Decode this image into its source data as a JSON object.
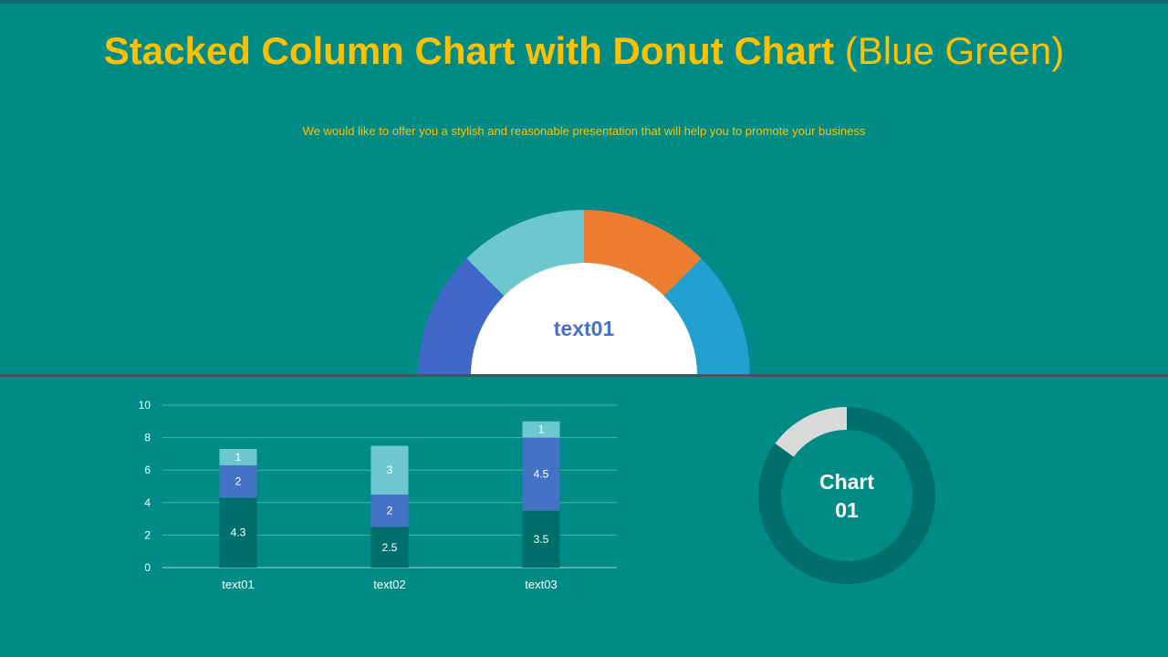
{
  "title": {
    "bold": "Stacked Column Chart with Donut Chart",
    "light": "(Blue Green)"
  },
  "subtitle": "We would like to offer you a stylish and reasonable presentation that will help you to promote your business",
  "colors": {
    "background": "#008b87",
    "title": "#ffc000",
    "dark_teal": "#006f6c",
    "royal_blue": "#4472c4",
    "light_teal": "#6cc8ce",
    "orange": "#ed7d31",
    "sky_blue": "#22a0d0",
    "gray": "#d9d9d9"
  },
  "chart_data": [
    {
      "type": "pie",
      "variant": "half-donut",
      "center_label": "text01",
      "slices": [
        {
          "value": 1,
          "color": "#4167c8"
        },
        {
          "value": 1,
          "color": "#6cc8ce"
        },
        {
          "value": 1,
          "color": "#ed7d31"
        },
        {
          "value": 1,
          "color": "#22a0d0"
        }
      ]
    },
    {
      "type": "bar",
      "stacked": true,
      "categories": [
        "text01",
        "text02",
        "text03"
      ],
      "series": [
        {
          "values": [
            4.3,
            2.5,
            3.5
          ],
          "color": "#006f6c"
        },
        {
          "values": [
            2,
            2,
            4.5
          ],
          "color": "#4472c4"
        },
        {
          "values": [
            1,
            3,
            1
          ],
          "color": "#6cc8ce"
        }
      ],
      "ylim": [
        0,
        10
      ],
      "yticks": [
        0,
        2,
        4,
        6,
        8,
        10
      ],
      "grid": true
    },
    {
      "type": "pie",
      "variant": "donut",
      "center_label_lines": [
        "Chart",
        "01"
      ],
      "slices": [
        {
          "value": 85,
          "color": "#006f6c"
        },
        {
          "value": 15,
          "color": "#d9d9d9"
        }
      ]
    }
  ]
}
